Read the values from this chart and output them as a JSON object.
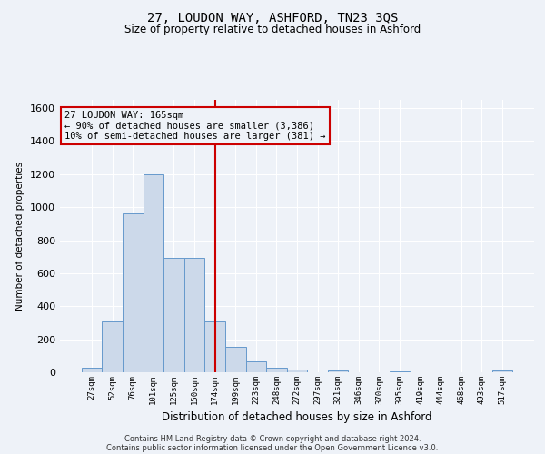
{
  "title": "27, LOUDON WAY, ASHFORD, TN23 3QS",
  "subtitle": "Size of property relative to detached houses in Ashford",
  "xlabel": "Distribution of detached houses by size in Ashford",
  "ylabel": "Number of detached properties",
  "bar_labels": [
    "27sqm",
    "52sqm",
    "76sqm",
    "101sqm",
    "125sqm",
    "150sqm",
    "174sqm",
    "199sqm",
    "223sqm",
    "248sqm",
    "272sqm",
    "297sqm",
    "321sqm",
    "346sqm",
    "370sqm",
    "395sqm",
    "419sqm",
    "444sqm",
    "468sqm",
    "493sqm",
    "517sqm"
  ],
  "bar_values": [
    30,
    310,
    960,
    1200,
    695,
    695,
    310,
    155,
    65,
    25,
    15,
    0,
    10,
    0,
    0,
    5,
    0,
    0,
    0,
    0,
    10
  ],
  "bar_color": "#ccd9ea",
  "bar_edge_color": "#6699cc",
  "vline_x": 6.0,
  "vline_color": "#cc0000",
  "annotation_lines": [
    "27 LOUDON WAY: 165sqm",
    "← 90% of detached houses are smaller (3,386)",
    "10% of semi-detached houses are larger (381) →"
  ],
  "annotation_box_color": "#cc0000",
  "ylim": [
    0,
    1650
  ],
  "yticks": [
    0,
    200,
    400,
    600,
    800,
    1000,
    1200,
    1400,
    1600
  ],
  "footer1": "Contains HM Land Registry data © Crown copyright and database right 2024.",
  "footer2": "Contains public sector information licensed under the Open Government Licence v3.0.",
  "bg_color": "#eef2f8",
  "grid_color": "#ffffff"
}
